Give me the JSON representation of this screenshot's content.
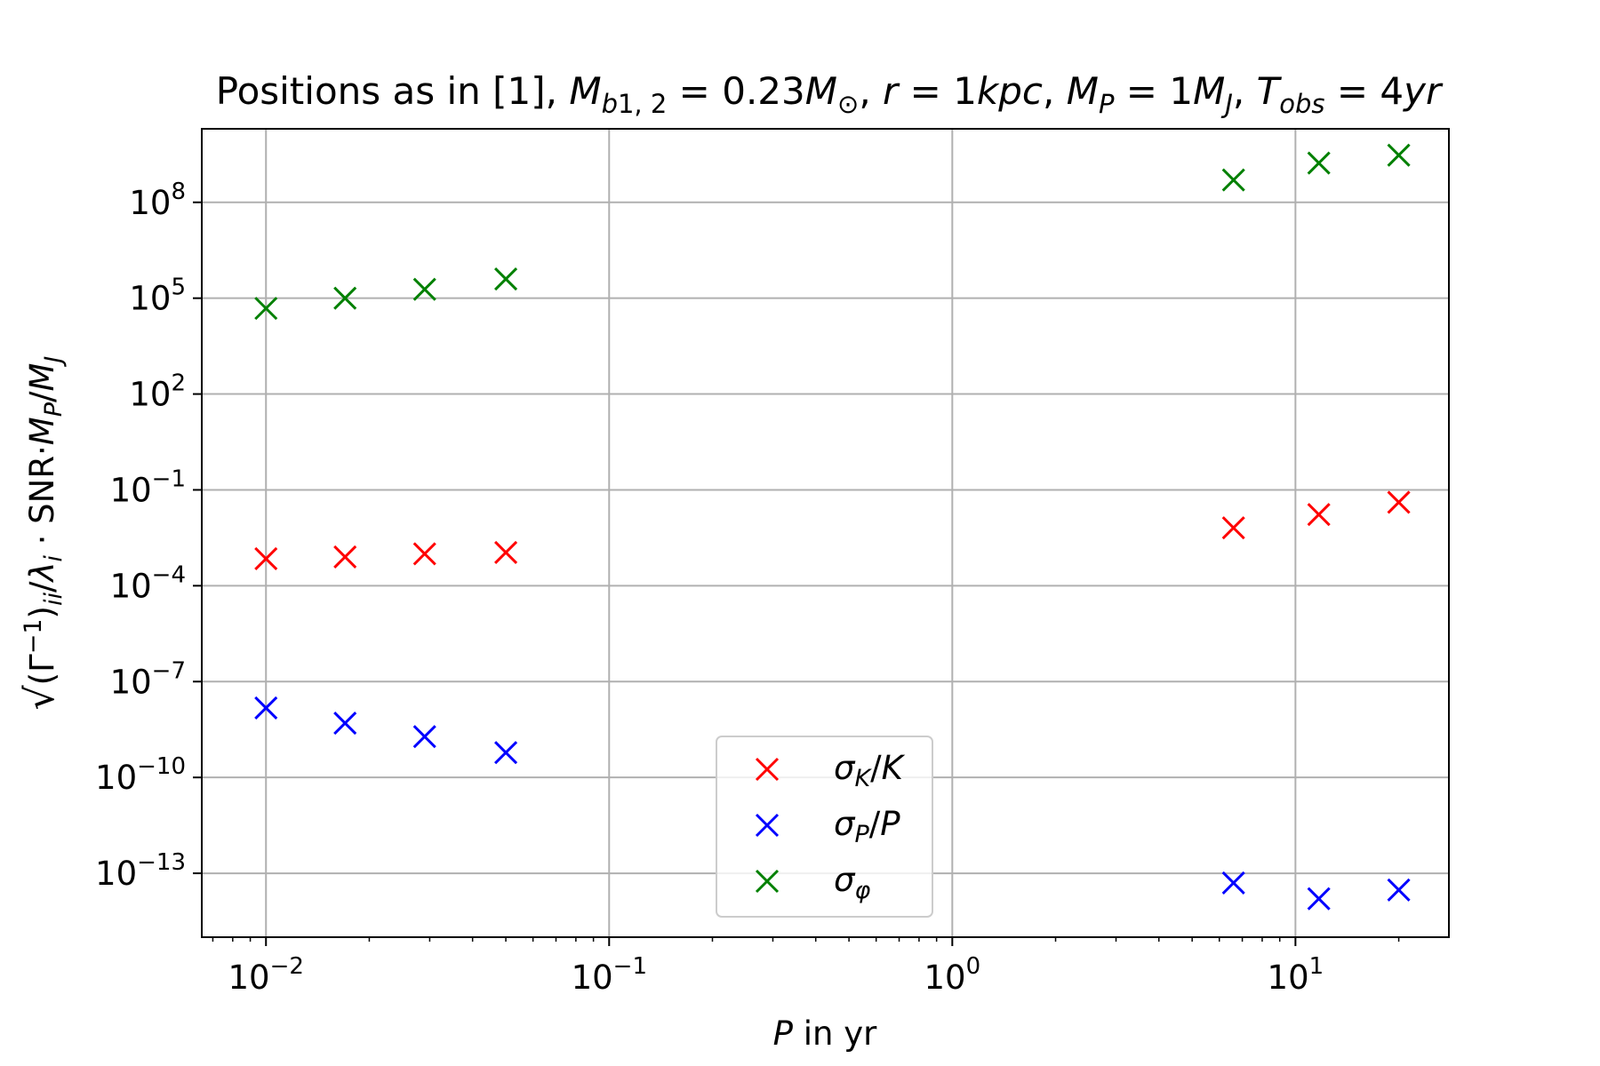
{
  "chart_data": {
    "type": "scatter",
    "title": "Positions as in [1], M_{b1,2} = 0.23M_⊙, r = 1kpc, M_P = 1M_J, T_{obs} = 4yr",
    "xlabel": "P in yr",
    "ylabel": "√(Γ⁻¹)_ii/λ_i · SNR·M_P/M_J",
    "xscale": "log",
    "yscale": "log",
    "xlim": [
      0.0065,
      28
    ],
    "ylim": [
      1e-15,
      20000000000.0
    ],
    "grid": true,
    "legend_position": "lower-center",
    "x_ticks": [
      {
        "value": 0.01,
        "base": "10",
        "exp": "−2"
      },
      {
        "value": 0.1,
        "base": "10",
        "exp": "−1"
      },
      {
        "value": 1,
        "base": "10",
        "exp": "0"
      },
      {
        "value": 10,
        "base": "10",
        "exp": "1"
      }
    ],
    "y_ticks": [
      {
        "value": 1e-13,
        "base": "10",
        "exp": "−13"
      },
      {
        "value": 1e-10,
        "base": "10",
        "exp": "−10"
      },
      {
        "value": 1e-07,
        "base": "10",
        "exp": "−7"
      },
      {
        "value": 0.0001,
        "base": "10",
        "exp": "−4"
      },
      {
        "value": 0.1,
        "base": "10",
        "exp": "−1"
      },
      {
        "value": 100.0,
        "base": "10",
        "exp": "2"
      },
      {
        "value": 100000.0,
        "base": "10",
        "exp": "5"
      },
      {
        "value": 100000000.0,
        "base": "10",
        "exp": "8"
      }
    ],
    "series": [
      {
        "name": "σ_K/K",
        "color": "#ff0000",
        "marker": "x",
        "points": [
          {
            "x": 0.01,
            "y": 0.0007
          },
          {
            "x": 0.017,
            "y": 0.0008
          },
          {
            "x": 0.029,
            "y": 0.001
          },
          {
            "x": 0.05,
            "y": 0.0011
          },
          {
            "x": 6.6,
            "y": 0.0065
          },
          {
            "x": 11.7,
            "y": 0.017
          },
          {
            "x": 20,
            "y": 0.041
          }
        ]
      },
      {
        "name": "σ_P/P",
        "color": "#0000ff",
        "marker": "x",
        "points": [
          {
            "x": 0.01,
            "y": 1.5e-08
          },
          {
            "x": 0.017,
            "y": 5e-09
          },
          {
            "x": 0.029,
            "y": 1.9e-09
          },
          {
            "x": 0.05,
            "y": 6e-10
          },
          {
            "x": 6.6,
            "y": 5e-14
          },
          {
            "x": 11.7,
            "y": 1.6e-14
          },
          {
            "x": 20,
            "y": 3e-14
          }
        ]
      },
      {
        "name": "σ_φ",
        "color": "#008000",
        "marker": "x",
        "points": [
          {
            "x": 0.01,
            "y": 48000
          },
          {
            "x": 0.017,
            "y": 100000
          },
          {
            "x": 0.029,
            "y": 190000
          },
          {
            "x": 0.05,
            "y": 400000
          },
          {
            "x": 6.6,
            "y": 500000000
          },
          {
            "x": 11.7,
            "y": 1700000000
          },
          {
            "x": 20,
            "y": 3000000000
          }
        ]
      }
    ]
  }
}
